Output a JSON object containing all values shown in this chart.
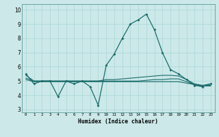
{
  "xlabel": "Humidex (Indice chaleur)",
  "bg_color": "#cce8e8",
  "line_color": "#1a6b6b",
  "xlim": [
    -0.5,
    23.5
  ],
  "ylim": [
    2.8,
    10.4
  ],
  "yticks": [
    3,
    4,
    5,
    6,
    7,
    8,
    9,
    10
  ],
  "xticks": [
    0,
    1,
    2,
    3,
    4,
    5,
    6,
    7,
    8,
    9,
    10,
    11,
    12,
    13,
    14,
    15,
    16,
    17,
    18,
    19,
    20,
    21,
    22,
    23
  ],
  "lines": [
    {
      "x": [
        0,
        1,
        2,
        3,
        4,
        5,
        6,
        7,
        8,
        9,
        10,
        11,
        12,
        13,
        14,
        15,
        16,
        17,
        18,
        19,
        20,
        21,
        22,
        23
      ],
      "y": [
        5.5,
        4.8,
        5.0,
        5.0,
        3.9,
        5.0,
        4.8,
        5.0,
        4.6,
        3.3,
        6.1,
        6.9,
        8.0,
        9.0,
        9.3,
        9.7,
        8.6,
        7.0,
        5.8,
        5.5,
        5.1,
        4.7,
        4.6,
        4.8
      ],
      "marker": true
    },
    {
      "x": [
        0,
        1,
        2,
        3,
        4,
        5,
        6,
        7,
        8,
        9,
        10,
        11,
        12,
        13,
        14,
        15,
        16,
        17,
        18,
        19,
        20,
        21,
        22,
        23
      ],
      "y": [
        5.4,
        5.0,
        5.0,
        5.0,
        5.0,
        5.0,
        5.0,
        5.0,
        5.0,
        5.0,
        5.1,
        5.1,
        5.15,
        5.2,
        5.25,
        5.3,
        5.35,
        5.4,
        5.4,
        5.35,
        5.1,
        4.8,
        4.7,
        4.8
      ],
      "marker": false
    },
    {
      "x": [
        0,
        1,
        2,
        3,
        4,
        5,
        6,
        7,
        8,
        9,
        10,
        11,
        12,
        13,
        14,
        15,
        16,
        17,
        18,
        19,
        20,
        21,
        22,
        23
      ],
      "y": [
        5.2,
        5.0,
        5.0,
        5.0,
        5.0,
        5.0,
        5.0,
        5.0,
        5.0,
        5.0,
        5.0,
        5.0,
        5.0,
        5.0,
        5.0,
        5.05,
        5.1,
        5.1,
        5.15,
        5.15,
        4.95,
        4.75,
        4.65,
        4.7
      ],
      "marker": false
    },
    {
      "x": [
        0,
        1,
        2,
        3,
        4,
        5,
        6,
        7,
        8,
        9,
        10,
        11,
        12,
        13,
        14,
        15,
        16,
        17,
        18,
        19,
        20,
        21,
        22,
        23
      ],
      "y": [
        5.1,
        4.95,
        4.95,
        4.95,
        4.95,
        4.95,
        4.95,
        4.95,
        4.95,
        4.95,
        4.95,
        4.95,
        4.95,
        4.95,
        4.95,
        4.95,
        4.95,
        4.95,
        4.95,
        4.95,
        4.85,
        4.75,
        4.65,
        4.65
      ],
      "marker": false
    }
  ]
}
